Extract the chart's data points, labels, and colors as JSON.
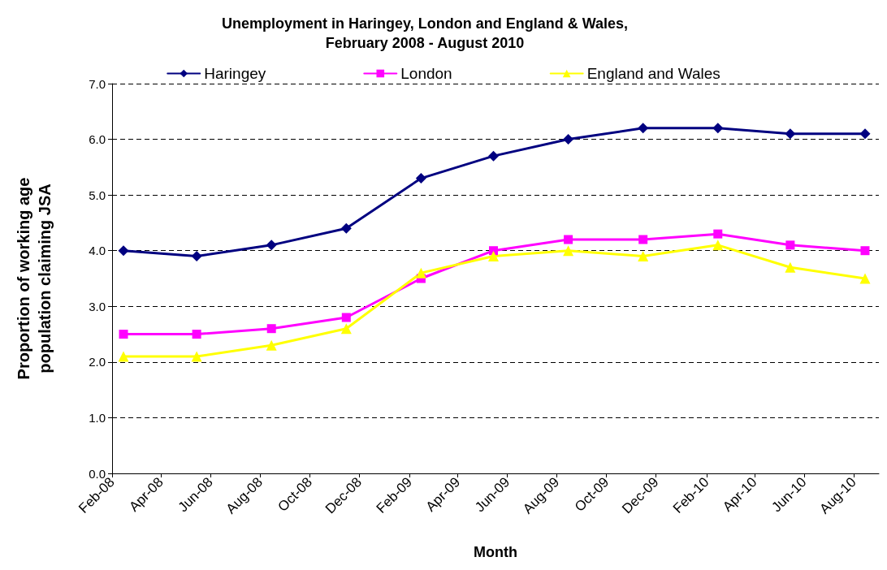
{
  "chart_data": {
    "type": "line",
    "title": "Unemployment in Haringey, London and England & Wales,\nFebruary 2008 - August 2010",
    "xlabel": "Month",
    "ylabel": "Proportion of working age\npopulation claiming JSA",
    "x": [
      "2008-02-15",
      "2008-05-15",
      "2008-08-15",
      "2008-11-15",
      "2009-02-15",
      "2009-05-15",
      "2009-08-15",
      "2009-11-15",
      "2010-02-15",
      "2010-05-15",
      "2010-08-15"
    ],
    "xlim": [
      "2008-02-01",
      "2010-09-01"
    ],
    "xticks": [
      {
        "value": "2008-02-01",
        "label": "Feb-08"
      },
      {
        "value": "2008-04-01",
        "label": "Apr-08"
      },
      {
        "value": "2008-06-01",
        "label": "Jun-08"
      },
      {
        "value": "2008-08-01",
        "label": "Aug-08"
      },
      {
        "value": "2008-10-01",
        "label": "Oct-08"
      },
      {
        "value": "2008-12-01",
        "label": "Dec-08"
      },
      {
        "value": "2009-02-01",
        "label": "Feb-09"
      },
      {
        "value": "2009-04-01",
        "label": "Apr-09"
      },
      {
        "value": "2009-06-01",
        "label": "Jun-09"
      },
      {
        "value": "2009-08-01",
        "label": "Aug-09"
      },
      {
        "value": "2009-10-01",
        "label": "Oct-09"
      },
      {
        "value": "2009-12-01",
        "label": "Dec-09"
      },
      {
        "value": "2010-02-01",
        "label": "Feb-10"
      },
      {
        "value": "2010-04-01",
        "label": "Apr-10"
      },
      {
        "value": "2010-06-01",
        "label": "Jun-10"
      },
      {
        "value": "2010-08-01",
        "label": "Aug-10"
      }
    ],
    "ylim": [
      0,
      7
    ],
    "yticks": [
      {
        "value": 0,
        "label": "0.0"
      },
      {
        "value": 1,
        "label": "1.0"
      },
      {
        "value": 2,
        "label": "2.0"
      },
      {
        "value": 3,
        "label": "3.0"
      },
      {
        "value": 4,
        "label": "4.0"
      },
      {
        "value": 5,
        "label": "5.0"
      },
      {
        "value": 6,
        "label": "6.0"
      },
      {
        "value": 7,
        "label": "7.0"
      }
    ],
    "grid": "y",
    "legend": "top",
    "line_style": "solid",
    "series": [
      {
        "name": "Haringey",
        "color": "#000080",
        "marker": "diamond",
        "values": [
          4.0,
          3.9,
          4.1,
          4.4,
          5.3,
          5.7,
          6.0,
          6.2,
          6.2,
          6.1,
          6.1
        ]
      },
      {
        "name": "London",
        "color": "#ff00ff",
        "marker": "square",
        "values": [
          2.5,
          2.5,
          2.6,
          2.8,
          3.5,
          4.0,
          4.2,
          4.2,
          4.3,
          4.1,
          4.0
        ]
      },
      {
        "name": "England and Wales",
        "color": "#ffff00",
        "marker": "triangle",
        "values": [
          2.1,
          2.1,
          2.3,
          2.6,
          3.6,
          3.9,
          4.0,
          3.9,
          4.1,
          3.7,
          3.5
        ]
      }
    ]
  }
}
